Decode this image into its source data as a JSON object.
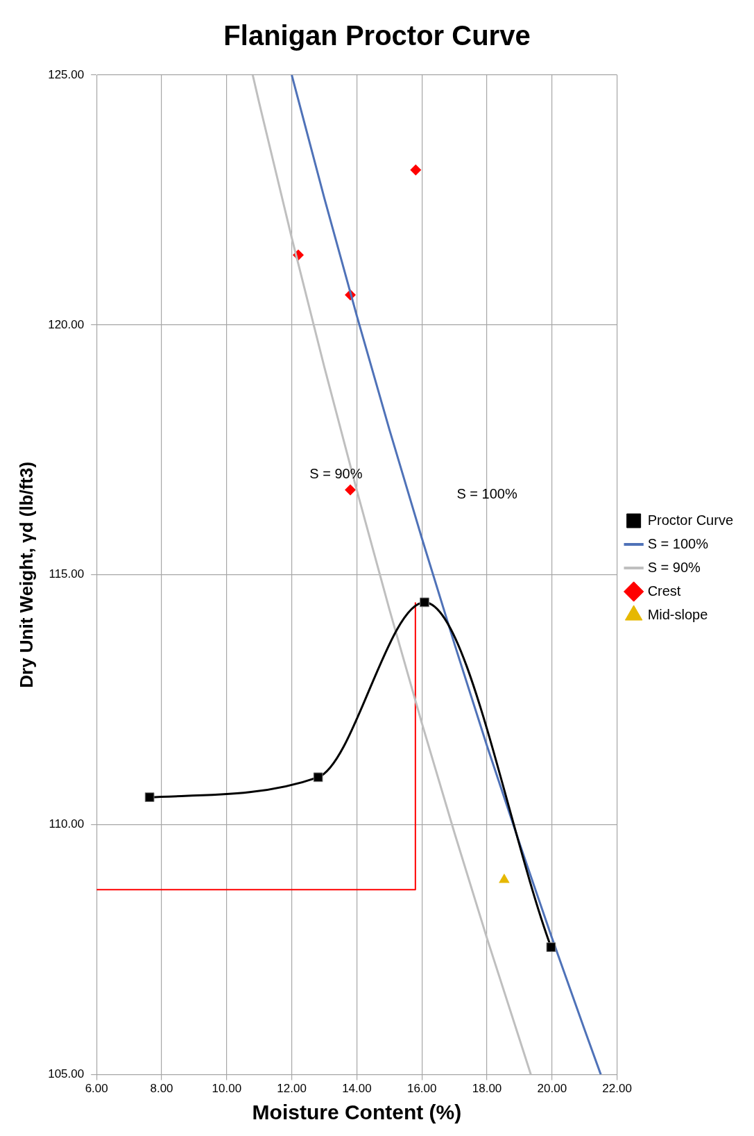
{
  "chart_data": {
    "type": "line",
    "title": "Flanigan Proctor Curve",
    "xlabel": "Moisture Content (%)",
    "ylabel": "Dry Unit Weight, γd (lb/ft3)",
    "xlim": [
      6,
      22
    ],
    "xticks": [
      {
        "value": 6,
        "label": "6.00"
      },
      {
        "value": 8,
        "label": "8.00"
      },
      {
        "value": 10,
        "label": "10.00"
      },
      {
        "value": 12,
        "label": "12.00"
      },
      {
        "value": 14,
        "label": "14.00"
      },
      {
        "value": 16,
        "label": "16.00"
      },
      {
        "value": 18,
        "label": "18.00"
      },
      {
        "value": 20,
        "label": "20.00"
      },
      {
        "value": 22,
        "label": "22.00"
      }
    ],
    "ylim": [
      105,
      125
    ],
    "yticks": [
      {
        "value": 105,
        "label": "105.00"
      },
      {
        "value": 110,
        "label": "110.00"
      },
      {
        "value": 115,
        "label": "115.00"
      },
      {
        "value": 120,
        "label": "120.00"
      },
      {
        "value": 125,
        "label": "125.00"
      }
    ],
    "grid": true,
    "legend": "right",
    "series": [
      {
        "name": "Proctor Curve",
        "color": "#000000",
        "marker": "square",
        "x": [
          7.63,
          12.81,
          16.08,
          19.97
        ],
        "values": [
          110.55,
          110.95,
          114.45,
          107.55
        ]
      },
      {
        "name": "S = 100%",
        "color": "#4f72b8",
        "marker": "none",
        "x": [
          12,
          13,
          14,
          15,
          16,
          17,
          18,
          19,
          20,
          21,
          21.5
        ],
        "values": [
          125.0,
          122.54,
          120.18,
          117.91,
          115.73,
          113.62,
          111.58,
          109.63,
          107.73,
          105.9,
          105.0
        ]
      },
      {
        "name": "S = 90%",
        "color": "#bfbfbf",
        "marker": "none",
        "x": [
          10.8,
          11,
          12,
          13,
          14,
          15,
          16,
          17,
          18,
          19,
          19.35
        ],
        "values": [
          125.0,
          124.44,
          121.74,
          119.16,
          116.69,
          114.31,
          112.03,
          109.84,
          107.73,
          105.71,
          105.0
        ]
      },
      {
        "name": "Crest",
        "type": "scatter",
        "color": "#ff0000",
        "marker": "diamond",
        "x": [
          15.81,
          13.8,
          13.8,
          12.2
        ],
        "values": [
          123.1,
          120.6,
          116.7,
          121.4
        ]
      },
      {
        "name": "Mid-slope",
        "type": "scatter",
        "color": "#e6b800",
        "marker": "triangle",
        "x": [
          18.53
        ],
        "values": [
          108.9
        ]
      },
      {
        "color": "#ff0000",
        "marker": "none",
        "x": [
          6,
          15.8,
          15.8
        ],
        "values": [
          108.7,
          108.7,
          114.45
        ]
      }
    ],
    "annotations": [
      "S = 100%",
      "S = 90%"
    ]
  }
}
